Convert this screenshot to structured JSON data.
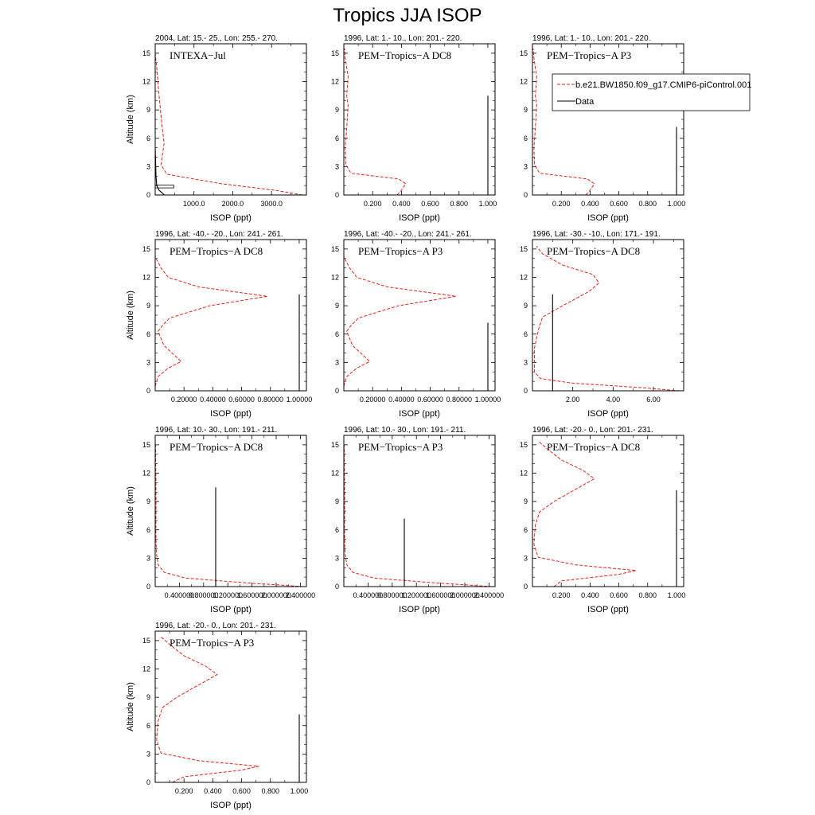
{
  "figure": {
    "title": "Tropics JJA ISOP"
  },
  "colors": {
    "model": "#e8201a",
    "data": "#000000"
  },
  "legend": {
    "placement": "right of top-right panel",
    "model_label": "b.e21.BW1850.f09_g17.CMIP6-piControl.001",
    "data_label": "Data"
  },
  "chart_data": [
    {
      "type": "line",
      "title": "2004, Lat: 15.- 25., Lon: 255.- 270.",
      "campaign": "INTEXA−Jul",
      "xlabel": "ISOP (ppt)",
      "ylabel": "Altitude (km)",
      "xlim": [
        0,
        3900
      ],
      "ylim": [
        0,
        16
      ],
      "xticks": [
        1000,
        2000,
        3000
      ],
      "xtick_labels": [
        "1000.0",
        "2000.0",
        "3000.0"
      ],
      "yticks": [
        0,
        3,
        6,
        9,
        12,
        15
      ],
      "series": [
        {
          "name": "b.e21.BW1850.f09_g17.CMIP6-piControl.001",
          "style": "dashed",
          "x": [
            3800,
            3100,
            1700,
            300,
            150,
            230,
            170,
            100,
            40,
            0
          ],
          "y": [
            0,
            0.5,
            1.2,
            2.2,
            3.2,
            5.5,
            7.5,
            10.5,
            13.5,
            15
          ]
        },
        {
          "name": "Data",
          "style": "solid",
          "x": [
            240,
            100,
            40,
            20,
            0
          ],
          "y": [
            0,
            0.5,
            1.0,
            2.0,
            5.0
          ]
        }
      ],
      "boxes": [
        {
          "x": [
            0,
            480
          ],
          "y": [
            0.75,
            1.05
          ]
        }
      ]
    },
    {
      "type": "line",
      "title": "1996, Lat: 1.- 10., Lon: 201.- 220.",
      "campaign": "PEM−Tropics−A DC8",
      "xlabel": "ISOP (ppt)",
      "ylabel": "",
      "xlim": [
        0,
        1.05
      ],
      "ylim": [
        0,
        16
      ],
      "xticks": [
        0.2,
        0.4,
        0.6,
        0.8,
        1.0
      ],
      "xtick_labels": [
        "0.200",
        "0.400",
        "0.600",
        "0.800",
        "1.000"
      ],
      "yticks": [
        0,
        3,
        6,
        9,
        12,
        15
      ],
      "series": [
        {
          "name": "b.e21.BW1850.f09_g17.CMIP6-piControl.001",
          "style": "dashed",
          "x": [
            0.37,
            0.4,
            0.43,
            0.38,
            0.05,
            0.015,
            0.01,
            0.02,
            0.03,
            0.02,
            0.03,
            0.01,
            0.005
          ],
          "y": [
            0,
            0.5,
            1.2,
            1.7,
            2.3,
            3.2,
            5.0,
            7.0,
            9.5,
            10.5,
            12.5,
            14.5,
            15.5
          ]
        },
        {
          "name": "Data",
          "style": "solid",
          "x": [
            1.0,
            1.0
          ],
          "y": [
            0,
            10.5
          ]
        }
      ]
    },
    {
      "type": "line",
      "title": "1996, Lat: 1.- 10., Lon: 201.- 220.",
      "campaign": "PEM−Tropics−A P3",
      "xlabel": "ISOP (ppt)",
      "ylabel": "",
      "xlim": [
        0,
        1.05
      ],
      "ylim": [
        0,
        16
      ],
      "xticks": [
        0.2,
        0.4,
        0.6,
        0.8,
        1.0
      ],
      "xtick_labels": [
        "0.200",
        "0.400",
        "0.600",
        "0.800",
        "1.000"
      ],
      "yticks": [
        0,
        3,
        6,
        9,
        12,
        15
      ],
      "series": [
        {
          "name": "b.e21.BW1850.f09_g17.CMIP6-piControl.001",
          "style": "dashed",
          "x": [
            0.37,
            0.4,
            0.43,
            0.38,
            0.05,
            0.015,
            0.01,
            0.02,
            0.03,
            0.02,
            0.03,
            0.01,
            0.005
          ],
          "y": [
            0,
            0.5,
            1.2,
            1.7,
            2.3,
            3.2,
            5.0,
            7.0,
            9.5,
            10.5,
            12.5,
            14.5,
            15.5
          ]
        },
        {
          "name": "Data",
          "style": "solid",
          "x": [
            1.0,
            1.0
          ],
          "y": [
            0,
            7.2
          ]
        }
      ]
    },
    {
      "type": "line",
      "title": "1996, Lat: -40.- -20., Lon: 241.- 261.",
      "campaign": "PEM−Tropics−A DC8",
      "xlabel": "ISOP (ppt)",
      "ylabel": "Altitude (km)",
      "xlim": [
        0,
        1.05
      ],
      "ylim": [
        0,
        16
      ],
      "xticks": [
        0.2,
        0.4,
        0.6,
        0.8,
        1.0
      ],
      "xtick_labels": [
        "0.20000",
        "0.40000",
        "0.60000",
        "0.80000",
        "1.00000"
      ],
      "yticks": [
        0,
        3,
        6,
        9,
        12,
        15
      ],
      "series": [
        {
          "name": "b.e21.BW1850.f09_g17.CMIP6-piControl.001",
          "style": "dashed",
          "x": [
            0.0,
            0.02,
            0.09,
            0.18,
            0.06,
            0.02,
            0.05,
            0.1,
            0.38,
            0.78,
            0.3,
            0.09,
            0.04,
            0.0
          ],
          "y": [
            0.5,
            1.5,
            2.4,
            3.1,
            4.8,
            6.3,
            6.9,
            7.7,
            9.0,
            10.0,
            11.0,
            12.0,
            13.0,
            14.2
          ]
        },
        {
          "name": "Data",
          "style": "solid",
          "x": [
            1.0,
            1.0
          ],
          "y": [
            0,
            10.2
          ]
        }
      ]
    },
    {
      "type": "line",
      "title": "1996, Lat: -40.- -20., Lon: 241.- 261.",
      "campaign": "PEM−Tropics−A P3",
      "xlabel": "ISOP (ppt)",
      "ylabel": "",
      "xlim": [
        0,
        1.05
      ],
      "ylim": [
        0,
        16
      ],
      "xticks": [
        0.2,
        0.4,
        0.6,
        0.8,
        1.0
      ],
      "xtick_labels": [
        "0.20000",
        "0.40000",
        "0.60000",
        "0.80000",
        "1.00000"
      ],
      "yticks": [
        0,
        3,
        6,
        9,
        12,
        15
      ],
      "series": [
        {
          "name": "b.e21.BW1850.f09_g17.CMIP6-piControl.001",
          "style": "dashed",
          "x": [
            0.0,
            0.02,
            0.09,
            0.18,
            0.06,
            0.02,
            0.05,
            0.1,
            0.38,
            0.78,
            0.3,
            0.09,
            0.04,
            0.0
          ],
          "y": [
            0.5,
            1.5,
            2.4,
            3.1,
            4.8,
            6.3,
            6.9,
            7.7,
            9.0,
            10.0,
            11.0,
            12.0,
            13.0,
            14.2
          ]
        },
        {
          "name": "Data",
          "style": "solid",
          "x": [
            1.0,
            1.0
          ],
          "y": [
            0,
            7.2
          ]
        }
      ]
    },
    {
      "type": "line",
      "title": "1996, Lat: -30.- -10., Lon: 171.- 191.",
      "campaign": "PEM−Tropics−A DC8",
      "xlabel": "ISOP (ppt)",
      "ylabel": "",
      "xlim": [
        0,
        7.5
      ],
      "ylim": [
        0,
        16
      ],
      "xticks": [
        2,
        4,
        6
      ],
      "xtick_labels": [
        "2.00",
        "4.00",
        "6.00"
      ],
      "yticks": [
        0,
        3,
        6,
        9,
        12,
        15
      ],
      "series": [
        {
          "name": "b.e21.BW1850.f09_g17.CMIP6-piControl.001",
          "style": "dashed",
          "x": [
            7.3,
            5.0,
            2.0,
            0.4,
            0.1,
            0.1,
            0.3,
            0.5,
            1.5,
            2.8,
            3.3,
            3.0,
            1.5,
            0.5,
            0.2
          ],
          "y": [
            0,
            0.4,
            0.8,
            1.3,
            2.0,
            4.5,
            6.5,
            7.8,
            9.0,
            10.5,
            11.4,
            12.3,
            13.3,
            14.5,
            15.3
          ]
        },
        {
          "name": "Data",
          "style": "solid",
          "x": [
            1.0,
            1.0
          ],
          "y": [
            0,
            10.2
          ]
        }
      ]
    },
    {
      "type": "line",
      "title": "1996, Lat: 10.- 30., Lon: 191.- 211.",
      "campaign": "PEM−Tropics−A DC8",
      "xlabel": "ISOP (ppt)",
      "ylabel": "Altitude (km)",
      "xlim": [
        0,
        2.5
      ],
      "ylim": [
        0,
        16
      ],
      "xticks": [
        0.4,
        0.8,
        1.2,
        1.6,
        2.0,
        2.4
      ],
      "xtick_labels": [
        "0.400000",
        "0.800000",
        "1.200000",
        "1.600000",
        "2.000000",
        "2.400000"
      ],
      "yticks": [
        0,
        3,
        6,
        9,
        12,
        15
      ],
      "series": [
        {
          "name": "b.e21.BW1850.f09_g17.CMIP6-piControl.001",
          "style": "dashed",
          "x": [
            2.45,
            1.5,
            0.5,
            0.15,
            0.05,
            0.02,
            0.01,
            0.015,
            0.01,
            0.005
          ],
          "y": [
            0,
            0.4,
            0.9,
            1.5,
            2.3,
            3.5,
            6.0,
            9.0,
            12.0,
            15.0
          ]
        },
        {
          "name": "Data",
          "style": "solid",
          "x": [
            1.0,
            1.0
          ],
          "y": [
            0,
            10.5
          ]
        }
      ]
    },
    {
      "type": "line",
      "title": "1996, Lat: 10.- 30., Lon: 191.- 211.",
      "campaign": "PEM−Tropics−A P3",
      "xlabel": "ISOP (ppt)",
      "ylabel": "",
      "xlim": [
        0,
        2.5
      ],
      "ylim": [
        0,
        16
      ],
      "xticks": [
        0.4,
        0.8,
        1.2,
        1.6,
        2.0,
        2.4
      ],
      "xtick_labels": [
        "0.400000",
        "0.800000",
        "1.200000",
        "1.600000",
        "2.000000",
        "2.400000"
      ],
      "yticks": [
        0,
        3,
        6,
        9,
        12,
        15
      ],
      "series": [
        {
          "name": "b.e21.BW1850.f09_g17.CMIP6-piControl.001",
          "style": "dashed",
          "x": [
            2.45,
            1.5,
            0.5,
            0.15,
            0.05,
            0.02,
            0.01,
            0.015,
            0.01,
            0.005
          ],
          "y": [
            0,
            0.4,
            0.9,
            1.5,
            2.3,
            3.5,
            6.0,
            9.0,
            12.0,
            15.0
          ]
        },
        {
          "name": "Data",
          "style": "solid",
          "x": [
            1.0,
            1.0
          ],
          "y": [
            0,
            7.2
          ]
        }
      ]
    },
    {
      "type": "line",
      "title": "1996, Lat: -20.- 0., Lon: 201.- 231.",
      "campaign": "PEM−Tropics−A DC8",
      "xlabel": "ISOP (ppt)",
      "ylabel": "",
      "xlim": [
        0,
        1.05
      ],
      "ylim": [
        0,
        16
      ],
      "xticks": [
        0.2,
        0.4,
        0.6,
        0.8,
        1.0
      ],
      "xtick_labels": [
        "0.200",
        "0.400",
        "0.600",
        "0.800",
        "1.000"
      ],
      "yticks": [
        0,
        3,
        6,
        9,
        12,
        15
      ],
      "series": [
        {
          "name": "b.e21.BW1850.f09_g17.CMIP6-piControl.001",
          "style": "dashed",
          "x": [
            0.15,
            0.2,
            0.6,
            0.72,
            0.3,
            0.04,
            0.01,
            0.02,
            0.05,
            0.15,
            0.3,
            0.43,
            0.35,
            0.2,
            0.1,
            0.04
          ],
          "y": [
            0,
            0.6,
            1.3,
            1.7,
            2.3,
            3.1,
            4.5,
            6.5,
            7.9,
            9.0,
            10.3,
            11.4,
            12.3,
            13.4,
            14.6,
            15.4
          ]
        },
        {
          "name": "Data",
          "style": "solid",
          "x": [
            1.0,
            1.0
          ],
          "y": [
            0,
            10.2
          ]
        }
      ]
    },
    {
      "type": "line",
      "title": "1996, Lat: -20.- 0., Lon: 201.- 231.",
      "campaign": "PEM−Tropics−A P3",
      "xlabel": "ISOP (ppt)",
      "ylabel": "Altitude (km)",
      "xlim": [
        0,
        1.05
      ],
      "ylim": [
        0,
        16
      ],
      "xticks": [
        0.2,
        0.4,
        0.6,
        0.8,
        1.0
      ],
      "xtick_labels": [
        "0.200",
        "0.400",
        "0.600",
        "0.800",
        "1.000"
      ],
      "yticks": [
        0,
        3,
        6,
        9,
        12,
        15
      ],
      "series": [
        {
          "name": "b.e21.BW1850.f09_g17.CMIP6-piControl.001",
          "style": "dashed",
          "x": [
            0.12,
            0.2,
            0.6,
            0.72,
            0.3,
            0.04,
            0.01,
            0.02,
            0.05,
            0.15,
            0.3,
            0.43,
            0.35,
            0.2,
            0.1,
            0.04
          ],
          "y": [
            0,
            0.6,
            1.3,
            1.7,
            2.3,
            3.1,
            4.5,
            6.5,
            7.9,
            9.0,
            10.3,
            11.4,
            12.3,
            13.4,
            14.6,
            15.4
          ]
        },
        {
          "name": "Data",
          "style": "solid",
          "x": [
            1.0,
            1.0
          ],
          "y": [
            0,
            7.2
          ]
        }
      ]
    }
  ]
}
